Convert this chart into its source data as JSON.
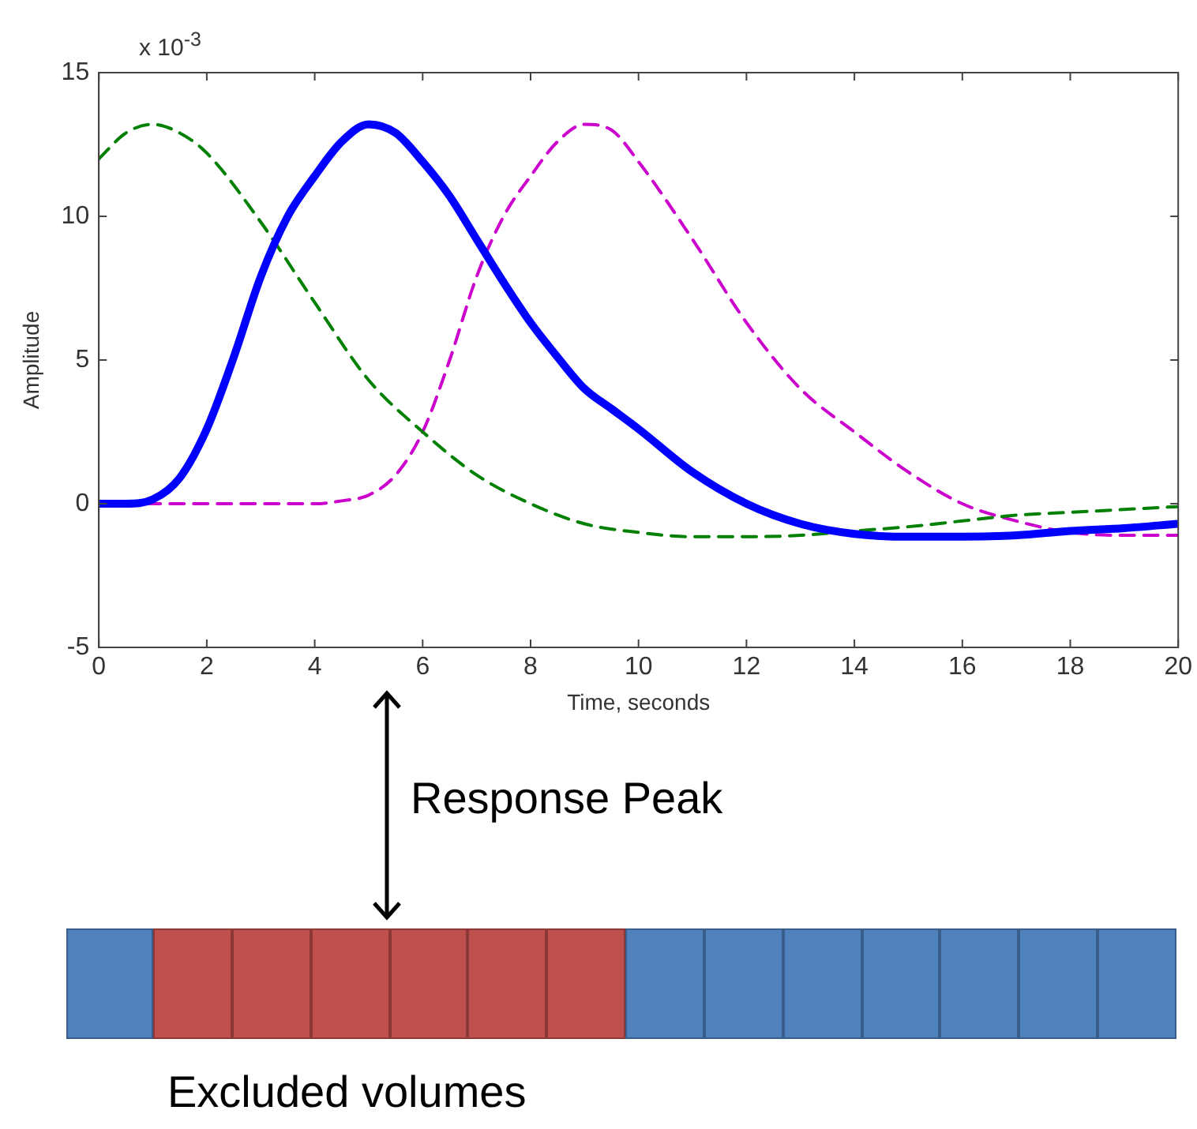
{
  "chart_data": {
    "type": "line",
    "xlabel": "Time, seconds",
    "ylabel": "Amplitude",
    "xlim": [
      0,
      20
    ],
    "xticks": [
      0,
      2,
      4,
      6,
      8,
      10,
      12,
      14,
      16,
      18,
      20
    ],
    "ylim": [
      -5,
      15
    ],
    "yticks": [
      -5,
      0,
      5,
      10,
      15
    ],
    "grid": false,
    "legend": false,
    "marker": "none",
    "annotations": [
      "x 10$^{-3}$",
      "Response Peak",
      "Excluded volumes"
    ],
    "series": [
      {
        "color": "#0000ff",
        "line_style": "solid",
        "x": [
          0,
          0.5,
          1,
          1.5,
          2,
          2.5,
          3,
          3.5,
          4,
          4.5,
          5,
          5.5,
          6,
          6.5,
          7,
          7.5,
          8,
          8.5,
          9,
          9.5,
          10,
          11,
          12,
          13,
          14,
          15,
          16,
          17,
          18,
          19,
          20
        ],
        "values": [
          0,
          0,
          0.15,
          0.9,
          2.6,
          5.1,
          7.9,
          10,
          11.4,
          12.6,
          13.2,
          12.9,
          11.9,
          10.7,
          9.2,
          7.7,
          6.3,
          5.1,
          4,
          3.3,
          2.6,
          1.1,
          0,
          -0.7,
          -1.05,
          -1.15,
          -1.15,
          -1.1,
          -0.95,
          -0.85,
          -0.7
        ]
      },
      {
        "color": "#008000",
        "line_style": "dashed",
        "x": [
          0,
          0.5,
          1,
          1.5,
          2,
          3,
          4,
          5,
          6,
          7,
          8,
          9,
          10,
          11,
          12,
          13,
          14,
          15,
          16,
          17,
          18,
          19,
          20
        ],
        "values": [
          12,
          12.9,
          13.2,
          12.9,
          12.2,
          9.8,
          7,
          4.3,
          2.5,
          1,
          0,
          -0.7,
          -1,
          -1.15,
          -1.15,
          -1.1,
          -0.95,
          -0.8,
          -0.6,
          -0.4,
          -0.3,
          -0.2,
          -0.1
        ]
      },
      {
        "color": "#cc00cc",
        "line_style": "dashed",
        "x": [
          0,
          4,
          4.5,
          5,
          5.5,
          6,
          6.5,
          7,
          7.5,
          8,
          8.5,
          9,
          9.5,
          10,
          11,
          12,
          13,
          14,
          15,
          16,
          17,
          18,
          19,
          20
        ],
        "values": [
          0,
          0,
          0.1,
          0.3,
          1,
          2.5,
          5,
          7.9,
          10,
          11.4,
          12.6,
          13.2,
          13,
          11.9,
          9.2,
          6.3,
          4,
          2.5,
          1.1,
          0,
          -0.6,
          -1,
          -1.1,
          -1.1
        ]
      }
    ]
  }
}
